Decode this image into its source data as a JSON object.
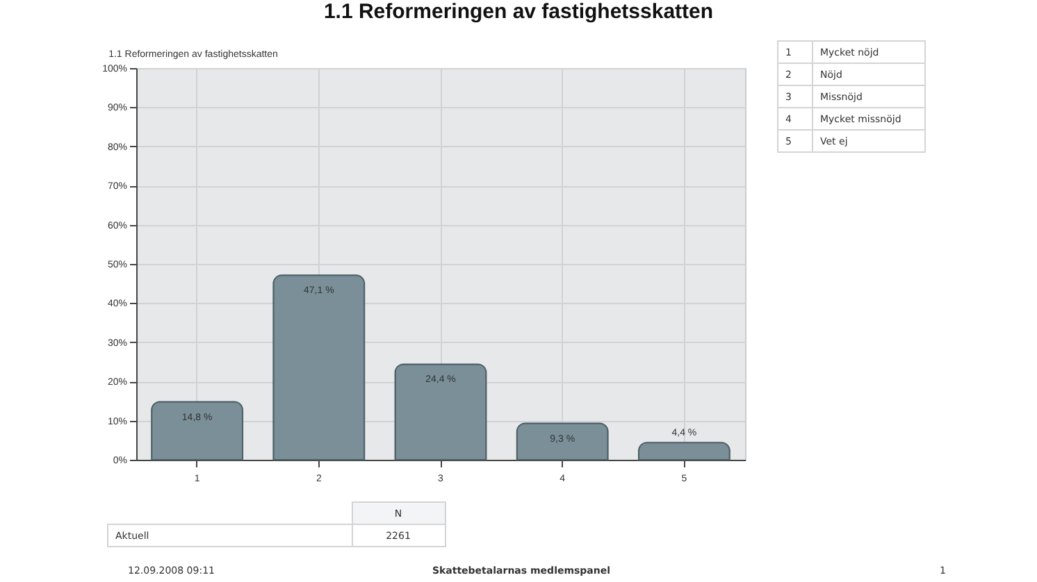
{
  "chart_data": {
    "type": "bar",
    "title": "1.1 Reformeringen av fastighetsskatten",
    "subtitle": "1.1 Reformeringen av fastighetsskatten",
    "categories": [
      "1",
      "2",
      "3",
      "4",
      "5"
    ],
    "values": [
      14.8,
      47.1,
      24.4,
      9.3,
      4.4
    ],
    "value_labels": [
      "14,8 %",
      "47,1 %",
      "24,4 %",
      "9,3 %",
      "4,4 %"
    ],
    "color": "#7a8f98",
    "ylim": [
      0,
      100
    ],
    "yticks": [
      {
        "value": 0,
        "label": "0%"
      },
      {
        "value": 10,
        "label": "10%"
      },
      {
        "value": 20,
        "label": "20%"
      },
      {
        "value": 30,
        "label": "30%"
      },
      {
        "value": 40,
        "label": "40%"
      },
      {
        "value": 50,
        "label": "50%"
      },
      {
        "value": 60,
        "label": "60%"
      },
      {
        "value": 70,
        "label": "70%"
      },
      {
        "value": 80,
        "label": "80%"
      },
      {
        "value": 90,
        "label": "90%"
      },
      {
        "value": 100,
        "label": "100%"
      }
    ],
    "grid": true,
    "annotations": [
      "1",
      "Mycket nöjd",
      "2",
      "Nöjd",
      "3",
      "Missnöjd",
      "4",
      "Mycket missnöjd",
      "5",
      "Vet ej",
      "N",
      "Aktuell",
      "2261",
      "12.09.2008 09:11",
      "Skattebetalarnas medlemspanel",
      "1"
    ]
  }
}
